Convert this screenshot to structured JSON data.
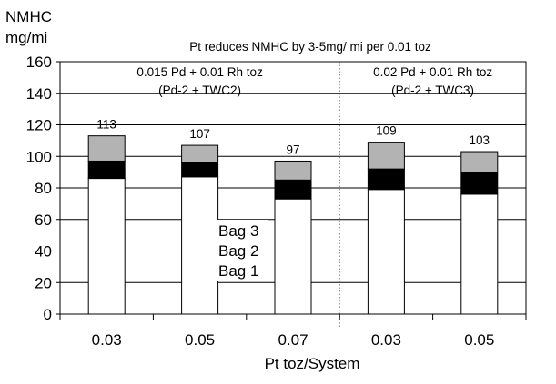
{
  "chart_data": {
    "type": "bar",
    "stacked": true,
    "ylabel_lines": [
      "NMHC",
      "mg/mi"
    ],
    "title": "Pt reduces NMHC by 3-5mg/  mi  per 0.01 toz",
    "xlabel": "Pt toz/System",
    "ylim": [
      0,
      160
    ],
    "yticks": [
      0,
      20,
      40,
      60,
      80,
      100,
      120,
      140,
      160
    ],
    "categories": [
      "0.03",
      "0.05",
      "0.07",
      "0.03",
      "0.05"
    ],
    "series": [
      {
        "name": "Bag 1",
        "values": [
          86,
          87,
          73,
          79,
          76
        ],
        "color": "#ffffff"
      },
      {
        "name": "Bag 2",
        "values": [
          11,
          9,
          12,
          13,
          14
        ],
        "color": "#000000"
      },
      {
        "name": "Bag 3",
        "values": [
          16,
          11,
          12,
          17,
          13
        ],
        "color": "#b3b3b3"
      }
    ],
    "totals": [
      "113",
      "107",
      "97",
      "109",
      "103"
    ],
    "groups": [
      {
        "line1": "0.015 Pd + 0.01 Rh toz",
        "line2": "(Pd-2 + TWC2)",
        "start": 0,
        "end": 2
      },
      {
        "line1": "0.02 Pd + 0.01 Rh  toz",
        "line2": "(Pd-2 + TWC3)",
        "start": 3,
        "end": 4
      }
    ],
    "grid": true,
    "legend_position": "inside-center"
  }
}
